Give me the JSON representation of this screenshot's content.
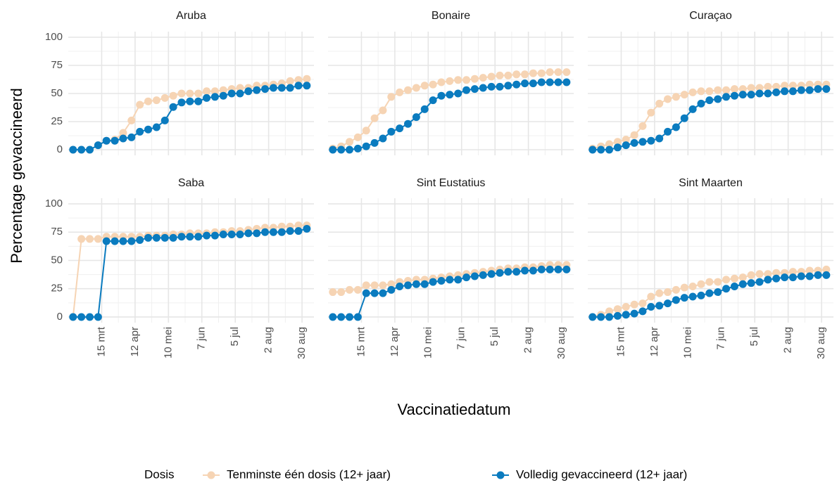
{
  "y_label": "Percentage gevaccineerd",
  "x_label": "Vaccinatiedatum",
  "legend_title": "Dosis",
  "chart_data": [
    {
      "type": "line",
      "title": "Aruba",
      "x": [
        "02-19",
        "02-26",
        "03-05",
        "03-12",
        "03-19",
        "03-26",
        "04-02",
        "04-09",
        "04-16",
        "04-23",
        "04-30",
        "05-07",
        "05-14",
        "05-21",
        "05-28",
        "06-04",
        "06-11",
        "06-18",
        "06-25",
        "07-02",
        "07-09",
        "07-16",
        "07-23",
        "07-30",
        "08-06",
        "08-13",
        "08-20",
        "08-27",
        "09-03"
      ],
      "series": [
        {
          "name": "Tenminste één dosis (12+ jaar)",
          "color": "#f6d4b4",
          "values": [
            0,
            0,
            0,
            4,
            8,
            9,
            15,
            26,
            40,
            43,
            44,
            46,
            48,
            50,
            50,
            50,
            52,
            52,
            53,
            54,
            55,
            55,
            57,
            57,
            58,
            59,
            61,
            62,
            63
          ]
        },
        {
          "name": "Volledig gevaccineerd (12+ jaar)",
          "color": "#0a7bbf",
          "values": [
            0,
            0,
            0,
            4,
            8,
            8,
            10,
            11,
            16,
            18,
            20,
            26,
            38,
            42,
            43,
            43,
            46,
            47,
            48,
            50,
            50,
            52,
            53,
            54,
            55,
            55,
            55,
            57,
            57
          ]
        }
      ],
      "xlim": [
        "02-15",
        "09-09"
      ],
      "xticks": [
        {
          "value": "03-15",
          "label": "15 mrt"
        },
        {
          "value": "04-12",
          "label": "12 apr"
        },
        {
          "value": "05-10",
          "label": "10 mei"
        },
        {
          "value": "06-07",
          "label": "7 jun"
        },
        {
          "value": "07-05",
          "label": "5 jul"
        },
        {
          "value": "08-02",
          "label": "2 aug"
        },
        {
          "value": "08-30",
          "label": "30 aug"
        }
      ],
      "ylim": [
        -5,
        105
      ],
      "yticks": [
        0,
        25,
        50,
        75,
        100
      ]
    },
    {
      "type": "line",
      "title": "Bonaire",
      "x": [
        "02-19",
        "02-26",
        "03-05",
        "03-12",
        "03-19",
        "03-26",
        "04-02",
        "04-09",
        "04-16",
        "04-23",
        "04-30",
        "05-07",
        "05-14",
        "05-21",
        "05-28",
        "06-04",
        "06-11",
        "06-18",
        "06-25",
        "07-02",
        "07-09",
        "07-16",
        "07-23",
        "07-30",
        "08-06",
        "08-13",
        "08-20",
        "08-27",
        "09-03"
      ],
      "series": [
        {
          "name": "Tenminste één dosis (12+ jaar)",
          "color": "#f6d4b4",
          "values": [
            1,
            3,
            7,
            11,
            17,
            28,
            35,
            47,
            51,
            53,
            55,
            57,
            58,
            60,
            61,
            62,
            62,
            63,
            64,
            65,
            66,
            66,
            67,
            67,
            68,
            68,
            69,
            69,
            69
          ]
        },
        {
          "name": "Volledig gevaccineerd (12+ jaar)",
          "color": "#0a7bbf",
          "values": [
            0,
            0,
            0,
            1,
            3,
            6,
            10,
            16,
            19,
            23,
            29,
            36,
            44,
            48,
            49,
            50,
            53,
            54,
            55,
            56,
            56,
            57,
            58,
            59,
            59,
            60,
            60,
            60,
            60
          ]
        }
      ],
      "xlim": [
        "02-15",
        "09-09"
      ],
      "xticks": [
        {
          "value": "03-15",
          "label": "15 mrt"
        },
        {
          "value": "04-12",
          "label": "12 apr"
        },
        {
          "value": "05-10",
          "label": "10 mei"
        },
        {
          "value": "06-07",
          "label": "7 jun"
        },
        {
          "value": "07-05",
          "label": "5 jul"
        },
        {
          "value": "08-02",
          "label": "2 aug"
        },
        {
          "value": "08-30",
          "label": "30 aug"
        }
      ],
      "ylim": [
        -5,
        105
      ],
      "yticks": [
        0,
        25,
        50,
        75,
        100
      ]
    },
    {
      "type": "line",
      "title": "Curaçao",
      "x": [
        "02-19",
        "02-26",
        "03-05",
        "03-12",
        "03-19",
        "03-26",
        "04-02",
        "04-09",
        "04-16",
        "04-23",
        "04-30",
        "05-07",
        "05-14",
        "05-21",
        "05-28",
        "06-04",
        "06-11",
        "06-18",
        "06-25",
        "07-02",
        "07-09",
        "07-16",
        "07-23",
        "07-30",
        "08-06",
        "08-13",
        "08-20",
        "08-27",
        "09-03"
      ],
      "series": [
        {
          "name": "Tenminste één dosis (12+ jaar)",
          "color": "#f6d4b4",
          "values": [
            1,
            3,
            5,
            7,
            9,
            13,
            21,
            33,
            41,
            45,
            47,
            49,
            51,
            52,
            52,
            53,
            53,
            54,
            54,
            55,
            55,
            56,
            56,
            57,
            57,
            57,
            58,
            58,
            58
          ]
        },
        {
          "name": "Volledig gevaccineerd (12+ jaar)",
          "color": "#0a7bbf",
          "values": [
            0,
            0,
            0,
            2,
            4,
            6,
            7,
            8,
            10,
            16,
            20,
            28,
            36,
            41,
            44,
            45,
            47,
            48,
            49,
            49,
            50,
            50,
            51,
            52,
            52,
            53,
            53,
            54,
            54
          ]
        }
      ],
      "xlim": [
        "02-15",
        "09-09"
      ],
      "xticks": [
        {
          "value": "03-15",
          "label": "15 mrt"
        },
        {
          "value": "04-12",
          "label": "12 apr"
        },
        {
          "value": "05-10",
          "label": "10 mei"
        },
        {
          "value": "06-07",
          "label": "7 jun"
        },
        {
          "value": "07-05",
          "label": "5 jul"
        },
        {
          "value": "08-02",
          "label": "2 aug"
        },
        {
          "value": "08-30",
          "label": "30 aug"
        }
      ],
      "ylim": [
        -5,
        105
      ],
      "yticks": [
        0,
        25,
        50,
        75,
        100
      ]
    },
    {
      "type": "line",
      "title": "Saba",
      "x": [
        "02-19",
        "02-26",
        "03-05",
        "03-12",
        "03-19",
        "03-26",
        "04-02",
        "04-09",
        "04-16",
        "04-23",
        "04-30",
        "05-07",
        "05-14",
        "05-21",
        "05-28",
        "06-04",
        "06-11",
        "06-18",
        "06-25",
        "07-02",
        "07-09",
        "07-16",
        "07-23",
        "07-30",
        "08-06",
        "08-13",
        "08-20",
        "08-27",
        "09-03"
      ],
      "series": [
        {
          "name": "Tenminste één dosis (12+ jaar)",
          "color": "#f6d4b4",
          "values": [
            0,
            69,
            69,
            69,
            71,
            71,
            71,
            71,
            71,
            72,
            72,
            72,
            73,
            73,
            74,
            74,
            74,
            75,
            75,
            76,
            76,
            77,
            78,
            79,
            79,
            80,
            80,
            81,
            81
          ]
        },
        {
          "name": "Volledig gevaccineerd (12+ jaar)",
          "color": "#0a7bbf",
          "values": [
            0,
            0,
            0,
            0,
            67,
            67,
            67,
            67,
            68,
            70,
            70,
            70,
            70,
            71,
            71,
            71,
            72,
            72,
            73,
            73,
            73,
            74,
            74,
            75,
            75,
            75,
            76,
            76,
            78
          ]
        }
      ],
      "xlim": [
        "02-15",
        "09-09"
      ],
      "xticks": [
        {
          "value": "03-15",
          "label": "15 mrt"
        },
        {
          "value": "04-12",
          "label": "12 apr"
        },
        {
          "value": "05-10",
          "label": "10 mei"
        },
        {
          "value": "06-07",
          "label": "7 jun"
        },
        {
          "value": "07-05",
          "label": "5 jul"
        },
        {
          "value": "08-02",
          "label": "2 aug"
        },
        {
          "value": "08-30",
          "label": "30 aug"
        }
      ],
      "ylim": [
        -5,
        105
      ],
      "yticks": [
        0,
        25,
        50,
        75,
        100
      ]
    },
    {
      "type": "line",
      "title": "Sint Eustatius",
      "x": [
        "02-19",
        "02-26",
        "03-05",
        "03-12",
        "03-19",
        "03-26",
        "04-02",
        "04-09",
        "04-16",
        "04-23",
        "04-30",
        "05-07",
        "05-14",
        "05-21",
        "05-28",
        "06-04",
        "06-11",
        "06-18",
        "06-25",
        "07-02",
        "07-09",
        "07-16",
        "07-23",
        "07-30",
        "08-06",
        "08-13",
        "08-20",
        "08-27",
        "09-03"
      ],
      "series": [
        {
          "name": "Tenminste één dosis (12+ jaar)",
          "color": "#f6d4b4",
          "values": [
            22,
            22,
            24,
            24,
            28,
            28,
            28,
            29,
            31,
            32,
            33,
            33,
            34,
            35,
            36,
            37,
            38,
            39,
            40,
            41,
            42,
            43,
            43,
            44,
            44,
            45,
            46,
            46,
            46
          ]
        },
        {
          "name": "Volledig gevaccineerd (12+ jaar)",
          "color": "#0a7bbf",
          "values": [
            0,
            0,
            0,
            0,
            21,
            21,
            21,
            24,
            27,
            28,
            29,
            29,
            31,
            32,
            33,
            33,
            35,
            36,
            37,
            38,
            39,
            40,
            40,
            41,
            41,
            42,
            42,
            42,
            42
          ]
        }
      ],
      "xlim": [
        "02-15",
        "09-09"
      ],
      "xticks": [
        {
          "value": "03-15",
          "label": "15 mrt"
        },
        {
          "value": "04-12",
          "label": "12 apr"
        },
        {
          "value": "05-10",
          "label": "10 mei"
        },
        {
          "value": "06-07",
          "label": "7 jun"
        },
        {
          "value": "07-05",
          "label": "5 jul"
        },
        {
          "value": "08-02",
          "label": "2 aug"
        },
        {
          "value": "08-30",
          "label": "30 aug"
        }
      ],
      "ylim": [
        -5,
        105
      ],
      "yticks": [
        0,
        25,
        50,
        75,
        100
      ]
    },
    {
      "type": "line",
      "title": "Sint Maarten",
      "x": [
        "02-19",
        "02-26",
        "03-05",
        "03-12",
        "03-19",
        "03-26",
        "04-02",
        "04-09",
        "04-16",
        "04-23",
        "04-30",
        "05-07",
        "05-14",
        "05-21",
        "05-28",
        "06-04",
        "06-11",
        "06-18",
        "06-25",
        "07-02",
        "07-09",
        "07-16",
        "07-23",
        "07-30",
        "08-06",
        "08-13",
        "08-20",
        "08-27",
        "09-03"
      ],
      "series": [
        {
          "name": "Tenminste één dosis (12+ jaar)",
          "color": "#f6d4b4",
          "values": [
            0,
            2,
            5,
            7,
            9,
            11,
            12,
            18,
            21,
            22,
            24,
            26,
            27,
            29,
            31,
            31,
            33,
            34,
            35,
            37,
            38,
            38,
            39,
            39,
            40,
            40,
            41,
            41,
            42
          ]
        },
        {
          "name": "Volledig gevaccineerd (12+ jaar)",
          "color": "#0a7bbf",
          "values": [
            0,
            0,
            0,
            1,
            2,
            3,
            5,
            9,
            10,
            12,
            15,
            17,
            18,
            19,
            21,
            22,
            25,
            27,
            29,
            30,
            31,
            33,
            34,
            35,
            35,
            36,
            36,
            37,
            37
          ]
        }
      ],
      "xlim": [
        "02-15",
        "09-09"
      ],
      "xticks": [
        {
          "value": "03-15",
          "label": "15 mrt"
        },
        {
          "value": "04-12",
          "label": "12 apr"
        },
        {
          "value": "05-10",
          "label": "10 mei"
        },
        {
          "value": "06-07",
          "label": "7 jun"
        },
        {
          "value": "07-05",
          "label": "5 jul"
        },
        {
          "value": "08-02",
          "label": "2 aug"
        },
        {
          "value": "08-30",
          "label": "30 aug"
        }
      ],
      "ylim": [
        -5,
        105
      ],
      "yticks": [
        0,
        25,
        50,
        75,
        100
      ]
    }
  ]
}
